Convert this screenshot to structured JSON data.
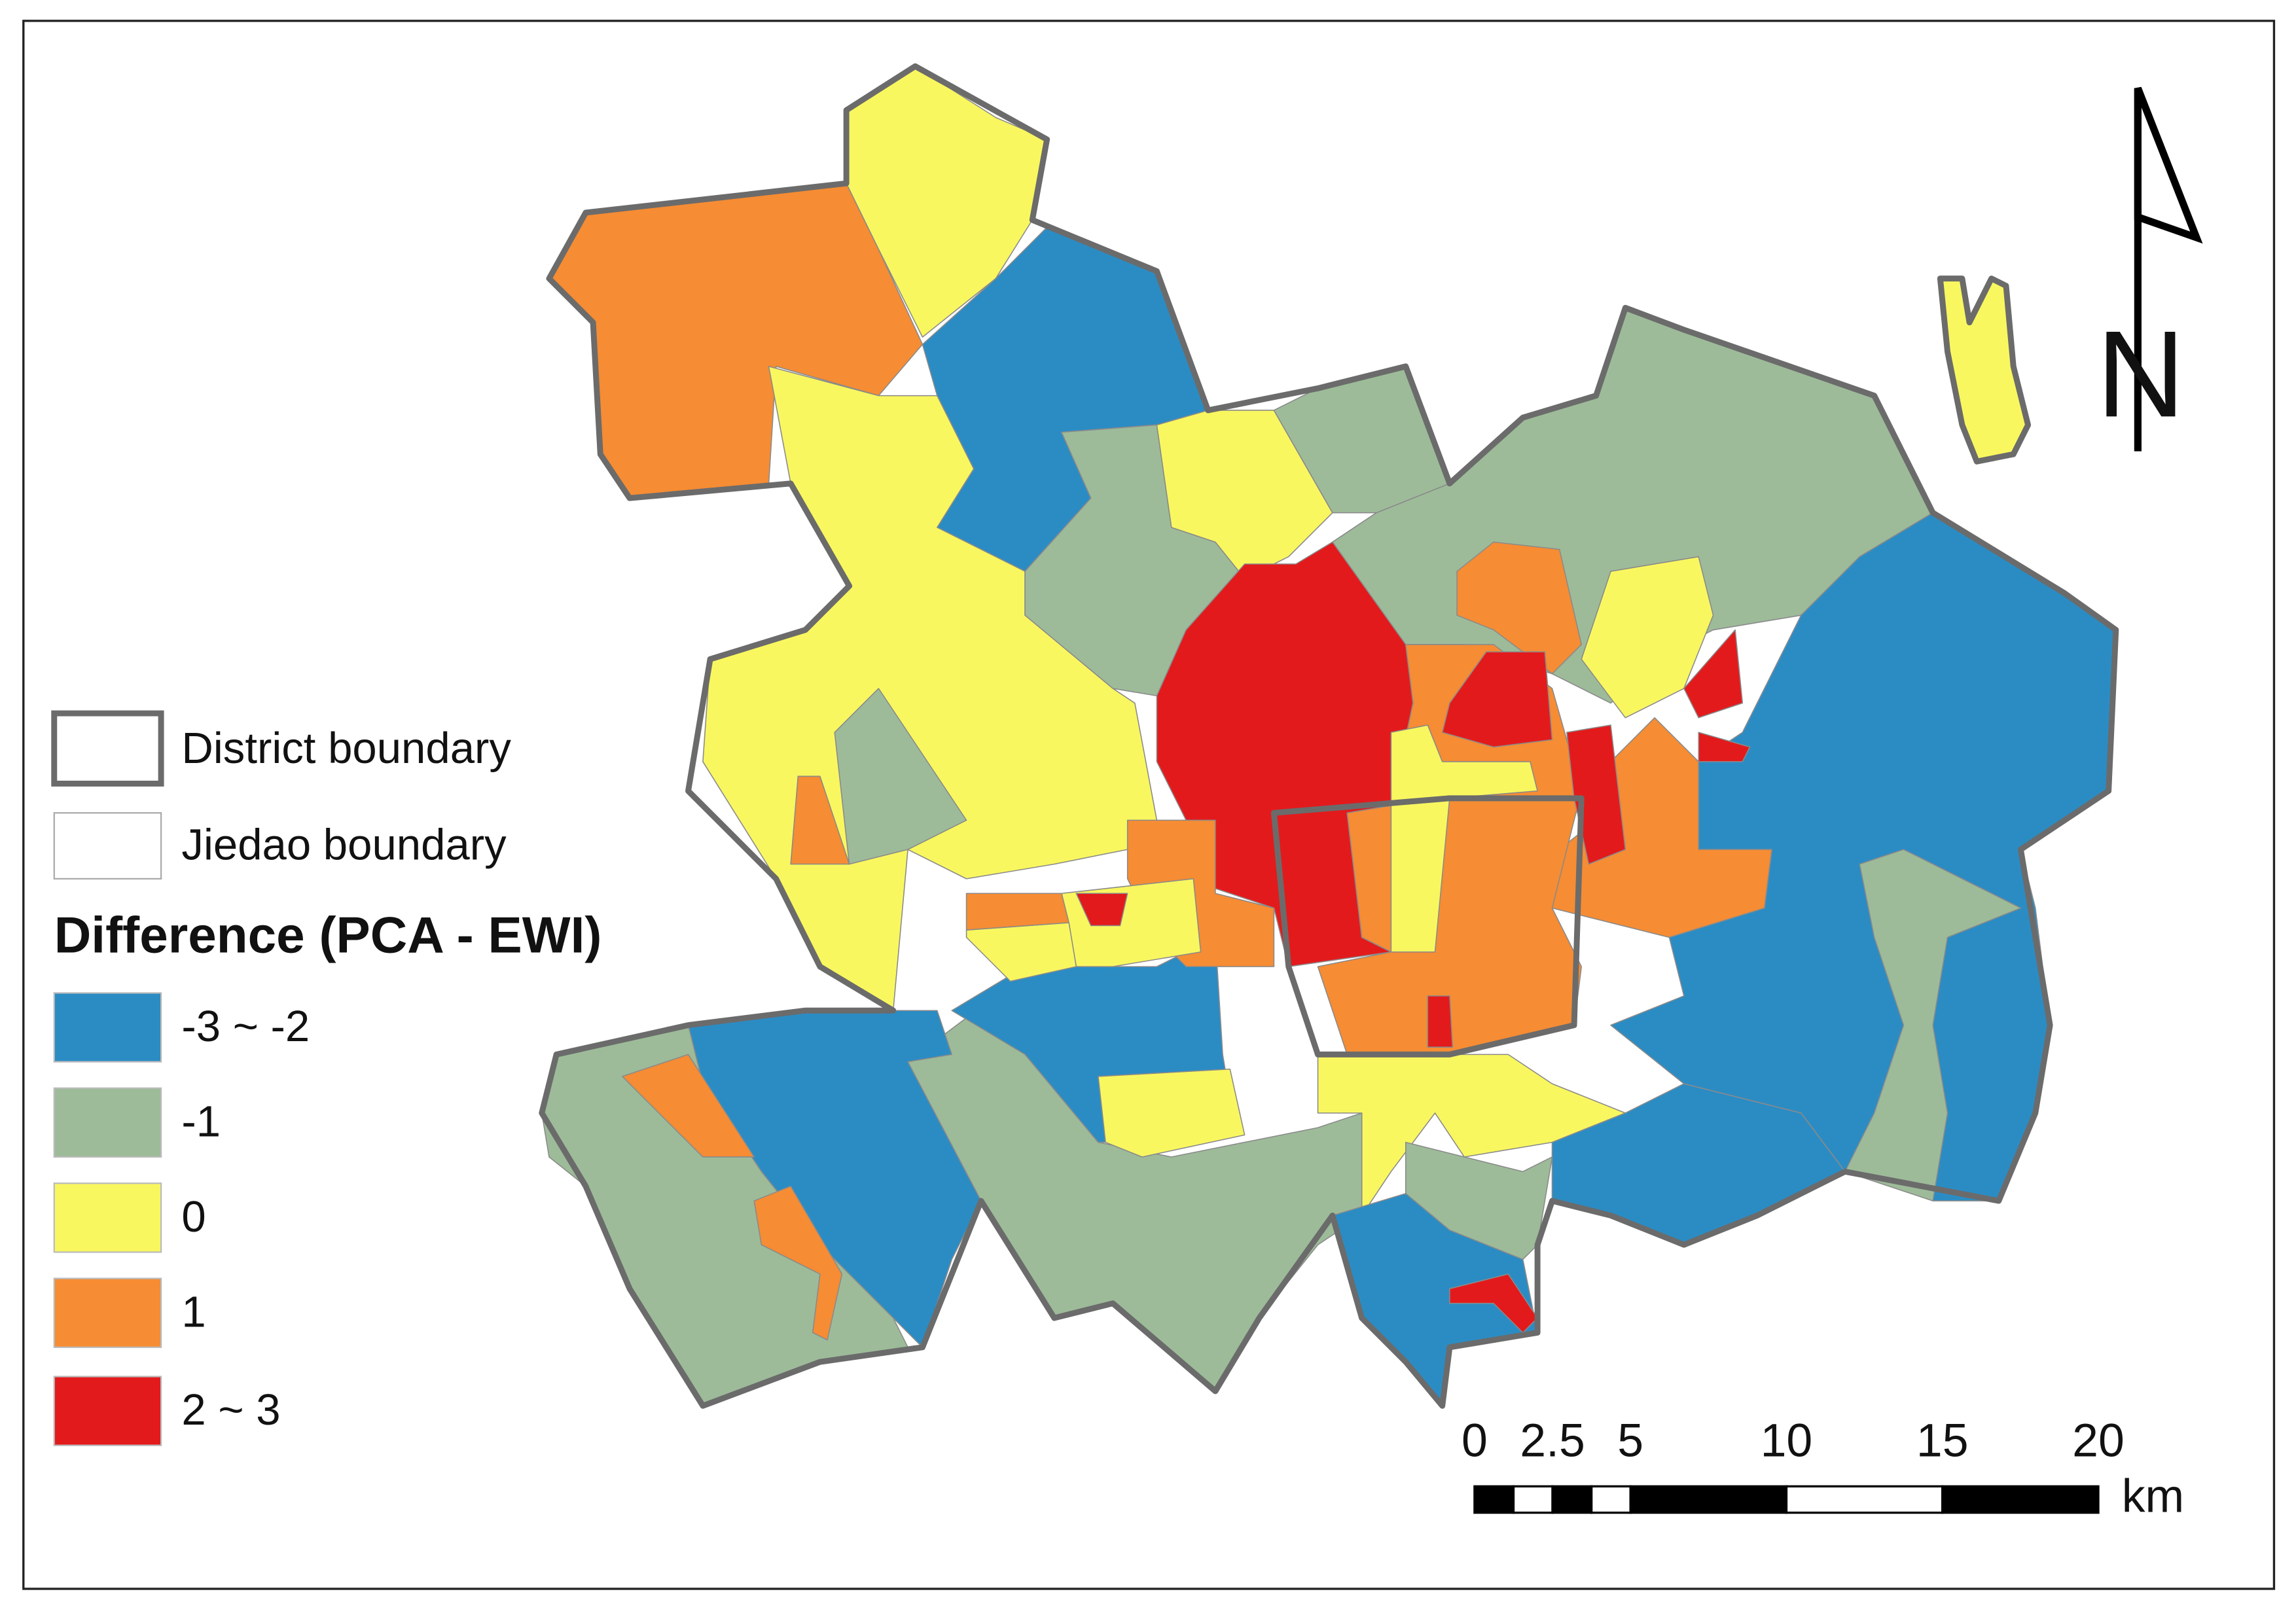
{
  "legend": {
    "boundaries": [
      {
        "label": "District boundary"
      },
      {
        "label": "Jiedao boundary"
      }
    ],
    "title": "Difference (PCA - EWI)",
    "classes": [
      {
        "label": "-3 ~ -2",
        "color": "#2b8cc4"
      },
      {
        "label": "-1",
        "color": "#9dbb99"
      },
      {
        "label": "0",
        "color": "#f9f75f"
      },
      {
        "label": "1",
        "color": "#f68c33"
      },
      {
        "label": "2 ~ 3",
        "color": "#e31a1c"
      }
    ]
  },
  "scale_bar": {
    "ticks": [
      0,
      2.5,
      5,
      10,
      15,
      20
    ],
    "unit": "km"
  },
  "north_arrow": {
    "label": "N"
  }
}
